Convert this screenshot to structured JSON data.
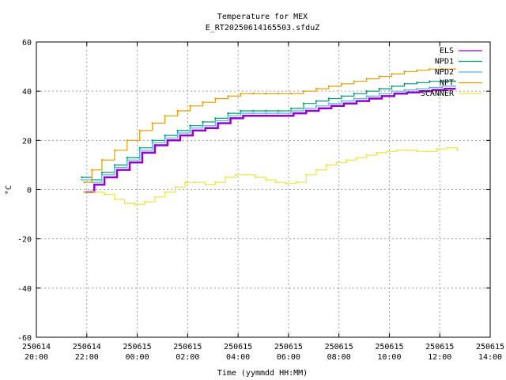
{
  "chart_data": {
    "type": "line",
    "title": "Temperature for MEX",
    "subtitle": "E_RT20250614165503.sfduZ",
    "xlabel": "Time (yymmdd HH:MM)",
    "ylabel": "°C",
    "ylim": [
      -60,
      60
    ],
    "yticks": [
      -60,
      -40,
      -20,
      0,
      20,
      40,
      60
    ],
    "xlim": [
      20,
      38
    ],
    "xticks": [
      {
        "x": 20,
        "date": "250614",
        "time": "20:00"
      },
      {
        "x": 22,
        "date": "250614",
        "time": "22:00"
      },
      {
        "x": 24,
        "date": "250615",
        "time": "00:00"
      },
      {
        "x": 26,
        "date": "250615",
        "time": "02:00"
      },
      {
        "x": 28,
        "date": "250615",
        "time": "04:00"
      },
      {
        "x": 30,
        "date": "250615",
        "time": "06:00"
      },
      {
        "x": 32,
        "date": "250615",
        "time": "08:00"
      },
      {
        "x": 34,
        "date": "250615",
        "time": "10:00"
      },
      {
        "x": 36,
        "date": "250615",
        "time": "12:00"
      },
      {
        "x": 38,
        "date": "250615",
        "time": "14:00"
      }
    ],
    "grid": true,
    "legend_position": "top-right",
    "series": [
      {
        "name": "ELS",
        "color": "#9400d3",
        "points": [
          [
            21.9,
            -1
          ],
          [
            22.3,
            2
          ],
          [
            22.7,
            5
          ],
          [
            23.2,
            8
          ],
          [
            23.7,
            11
          ],
          [
            24.2,
            15
          ],
          [
            24.7,
            18
          ],
          [
            25.2,
            20
          ],
          [
            25.7,
            22
          ],
          [
            26.2,
            24
          ],
          [
            26.7,
            25
          ],
          [
            27.2,
            27
          ],
          [
            27.7,
            29
          ],
          [
            28.2,
            30
          ],
          [
            28.7,
            30
          ],
          [
            29.2,
            30
          ],
          [
            29.7,
            30
          ],
          [
            30.2,
            31
          ],
          [
            30.7,
            32
          ],
          [
            31.2,
            33
          ],
          [
            31.7,
            34
          ],
          [
            32.2,
            35
          ],
          [
            32.7,
            36
          ],
          [
            33.2,
            37
          ],
          [
            33.7,
            38
          ],
          [
            34.2,
            39
          ],
          [
            34.7,
            39.5
          ],
          [
            35.2,
            40
          ],
          [
            35.7,
            40.5
          ],
          [
            36.2,
            41
          ],
          [
            36.6,
            41
          ]
        ]
      },
      {
        "name": "NPD1",
        "color": "#009e73",
        "points": [
          [
            21.8,
            5
          ],
          [
            22.2,
            4
          ],
          [
            22.6,
            7
          ],
          [
            23.1,
            10
          ],
          [
            23.6,
            13
          ],
          [
            24.1,
            17
          ],
          [
            24.6,
            20
          ],
          [
            25.1,
            22
          ],
          [
            25.6,
            24
          ],
          [
            26.1,
            26
          ],
          [
            26.6,
            27.5
          ],
          [
            27.1,
            29
          ],
          [
            27.6,
            31
          ],
          [
            28.1,
            32
          ],
          [
            28.6,
            32
          ],
          [
            29.1,
            32
          ],
          [
            29.6,
            32
          ],
          [
            30.1,
            33
          ],
          [
            30.6,
            35
          ],
          [
            31.1,
            36
          ],
          [
            31.6,
            37
          ],
          [
            32.1,
            38
          ],
          [
            32.6,
            39
          ],
          [
            33.1,
            40
          ],
          [
            33.6,
            41
          ],
          [
            34.1,
            42
          ],
          [
            34.6,
            43
          ],
          [
            35.1,
            43.5
          ],
          [
            35.6,
            44
          ],
          [
            36.1,
            44
          ],
          [
            36.6,
            44
          ]
        ]
      },
      {
        "name": "NPD2",
        "color": "#56b4e9",
        "points": [
          [
            21.8,
            4
          ],
          [
            22.2,
            3
          ],
          [
            22.6,
            6
          ],
          [
            23.1,
            9
          ],
          [
            23.6,
            12
          ],
          [
            24.1,
            16
          ],
          [
            24.6,
            19
          ],
          [
            25.1,
            21
          ],
          [
            25.6,
            23
          ],
          [
            26.1,
            25
          ],
          [
            26.6,
            26
          ],
          [
            27.1,
            28
          ],
          [
            27.6,
            30
          ],
          [
            28.1,
            31
          ],
          [
            28.6,
            31
          ],
          [
            29.1,
            31
          ],
          [
            29.6,
            31
          ],
          [
            30.1,
            32
          ],
          [
            30.6,
            33
          ],
          [
            31.1,
            34
          ],
          [
            31.6,
            35
          ],
          [
            32.1,
            36
          ],
          [
            32.6,
            37
          ],
          [
            33.1,
            38
          ],
          [
            33.6,
            39
          ],
          [
            34.1,
            40
          ],
          [
            34.6,
            40.5
          ],
          [
            35.1,
            41
          ],
          [
            35.6,
            41.5
          ],
          [
            36.1,
            42
          ],
          [
            36.6,
            42
          ]
        ]
      },
      {
        "name": "NPT",
        "color": "#e69f00",
        "points": [
          [
            21.9,
            3
          ],
          [
            22.2,
            8
          ],
          [
            22.6,
            12
          ],
          [
            23.1,
            16
          ],
          [
            23.6,
            20
          ],
          [
            24.1,
            24
          ],
          [
            24.6,
            27
          ],
          [
            25.1,
            30
          ],
          [
            25.6,
            32
          ],
          [
            26.1,
            34
          ],
          [
            26.6,
            35.5
          ],
          [
            27.1,
            37
          ],
          [
            27.6,
            38
          ],
          [
            28.1,
            39
          ],
          [
            28.6,
            39
          ],
          [
            29.1,
            39
          ],
          [
            29.6,
            39
          ],
          [
            30.1,
            39
          ],
          [
            30.6,
            40
          ],
          [
            31.1,
            41
          ],
          [
            31.6,
            42
          ],
          [
            32.1,
            43
          ],
          [
            32.6,
            44
          ],
          [
            33.1,
            45
          ],
          [
            33.6,
            46
          ],
          [
            34.1,
            47
          ],
          [
            34.6,
            48
          ],
          [
            35.1,
            48.5
          ],
          [
            35.6,
            49
          ],
          [
            36.1,
            49
          ],
          [
            36.6,
            49
          ]
        ]
      },
      {
        "name": "SCANNER",
        "color": "#f0e442",
        "points": [
          [
            21.9,
            -1
          ],
          [
            22.3,
            -1
          ],
          [
            22.7,
            -2
          ],
          [
            23.1,
            -4
          ],
          [
            23.5,
            -5.5
          ],
          [
            23.9,
            -6
          ],
          [
            24.3,
            -5
          ],
          [
            24.7,
            -3
          ],
          [
            25.1,
            -1
          ],
          [
            25.5,
            1
          ],
          [
            25.9,
            3
          ],
          [
            26.3,
            3
          ],
          [
            26.7,
            2
          ],
          [
            27.1,
            3
          ],
          [
            27.5,
            5
          ],
          [
            27.9,
            6
          ],
          [
            28.3,
            6
          ],
          [
            28.7,
            5
          ],
          [
            29.1,
            4
          ],
          [
            29.5,
            3
          ],
          [
            29.9,
            2.5
          ],
          [
            30.3,
            3
          ],
          [
            30.7,
            6
          ],
          [
            31.1,
            8
          ],
          [
            31.5,
            10
          ],
          [
            31.9,
            11
          ],
          [
            32.3,
            12
          ],
          [
            32.7,
            13
          ],
          [
            33.1,
            14
          ],
          [
            33.5,
            15
          ],
          [
            33.9,
            15.5
          ],
          [
            34.3,
            16
          ],
          [
            34.7,
            16
          ],
          [
            35.1,
            15.5
          ],
          [
            35.5,
            15.5
          ],
          [
            35.9,
            16.5
          ],
          [
            36.3,
            17
          ],
          [
            36.7,
            16
          ]
        ]
      }
    ]
  }
}
